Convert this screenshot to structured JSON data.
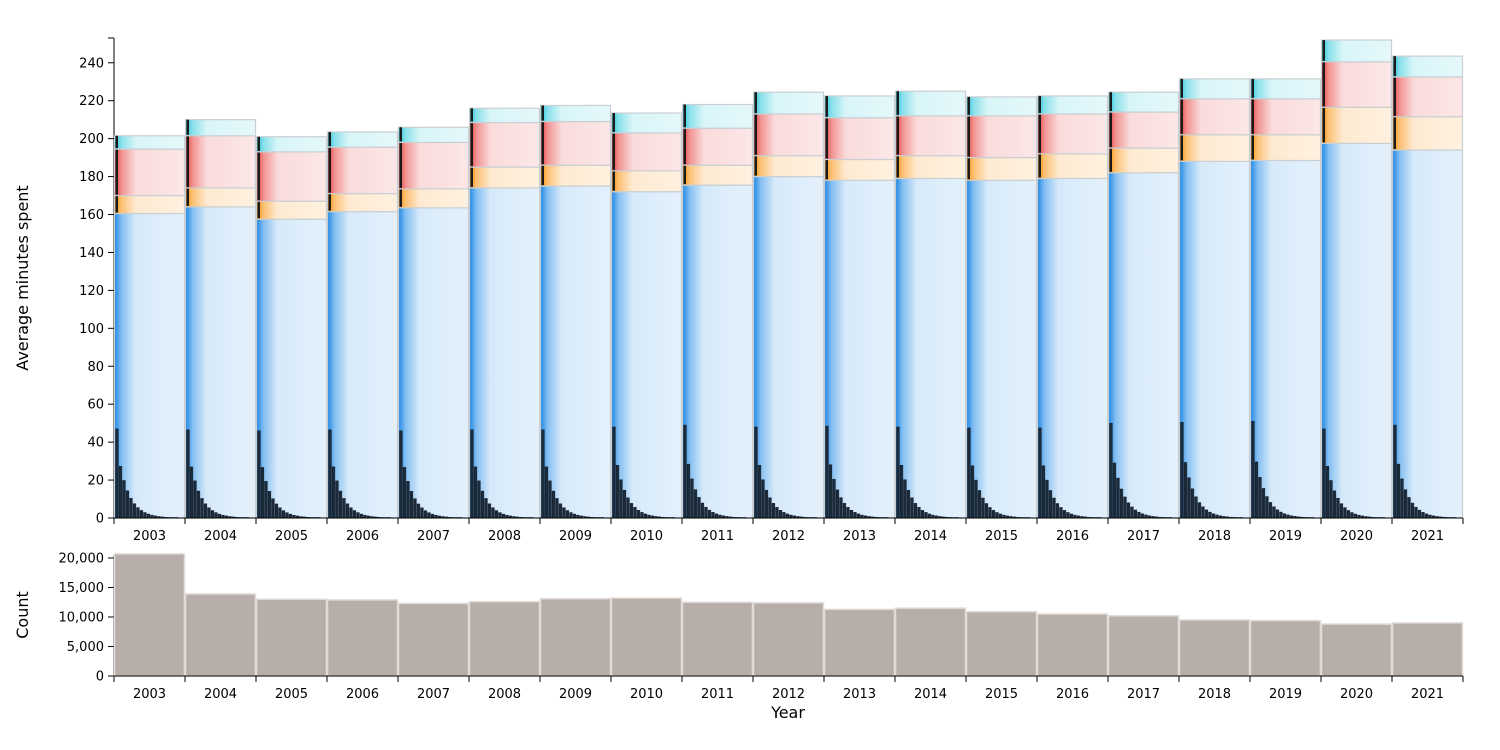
{
  "chart_data": [
    {
      "type": "bar",
      "stacked": true,
      "ylabel": "Average minutes spent",
      "xlabel": "",
      "ylim": [
        0,
        252
      ],
      "yticks": [
        0,
        20,
        40,
        60,
        80,
        100,
        120,
        140,
        160,
        180,
        200,
        220,
        240
      ],
      "categories": [
        "2003",
        "2004",
        "2005",
        "2006",
        "2007",
        "2008",
        "2009",
        "2010",
        "2011",
        "2012",
        "2013",
        "2014",
        "2015",
        "2016",
        "2017",
        "2018",
        "2019",
        "2020",
        "2021"
      ],
      "series": [
        {
          "color": "#1e88e5",
          "values": [
            160.5,
            164,
            157.5,
            161.5,
            163.5,
            174,
            175,
            172,
            175.5,
            180,
            178,
            179,
            178,
            179,
            182,
            188,
            188.5,
            197.5,
            194
          ]
        },
        {
          "color": "#fb8c00",
          "values": [
            9.5,
            10,
            9.5,
            9.5,
            10,
            11,
            11,
            11,
            10.5,
            11,
            11,
            12,
            12,
            13,
            13,
            14,
            13.5,
            19,
            17.5
          ]
        },
        {
          "color": "#e53935",
          "values": [
            24.5,
            27.5,
            26,
            24.5,
            24.5,
            23.5,
            23,
            20,
            19.5,
            22,
            22,
            21,
            22,
            21,
            19,
            19,
            19,
            24,
            21
          ]
        },
        {
          "color": "#26c6da",
          "values": [
            7,
            8.5,
            8,
            8,
            8,
            7.5,
            8.5,
            10.5,
            12.5,
            11.5,
            11.5,
            13,
            10,
            9.5,
            10.5,
            10.5,
            10.5,
            11.5,
            11
          ]
        }
      ],
      "totals": [
        201.5,
        210,
        201,
        203.5,
        206,
        216,
        217.5,
        213.5,
        218,
        224.5,
        222.5,
        225,
        222,
        222.5,
        224.5,
        231.5,
        231.5,
        252,
        243.5
      ],
      "first_bin_values": [
        47,
        46.5,
        46,
        46.5,
        46,
        46.5,
        46.5,
        48,
        49,
        48,
        48.5,
        48,
        47.5,
        47.5,
        50,
        50.5,
        51,
        47,
        49
      ]
    },
    {
      "type": "bar",
      "ylabel": "Count",
      "xlabel": "Year",
      "ylim": [
        0,
        20500
      ],
      "yticks": [
        0,
        5000,
        10000,
        15000,
        20000
      ],
      "ytick_labels": [
        "0",
        "5,000",
        "10,000",
        "15,000",
        "20,000"
      ],
      "color": "#b8aea9",
      "categories": [
        "2003",
        "2004",
        "2005",
        "2006",
        "2007",
        "2008",
        "2009",
        "2010",
        "2011",
        "2012",
        "2013",
        "2014",
        "2015",
        "2016",
        "2017",
        "2018",
        "2019",
        "2020",
        "2021"
      ],
      "values": [
        20700,
        13900,
        13000,
        12900,
        12300,
        12600,
        13100,
        13200,
        12500,
        12400,
        11300,
        11500,
        10900,
        10500,
        10200,
        9500,
        9400,
        8800,
        9000
      ]
    }
  ]
}
